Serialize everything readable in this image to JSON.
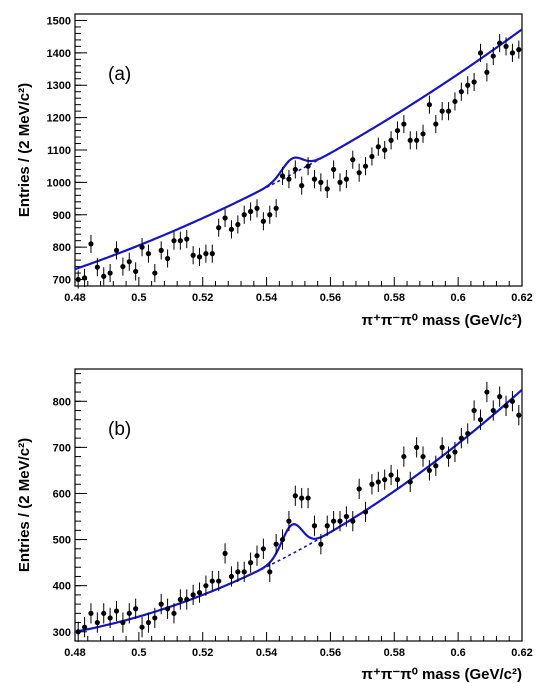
{
  "figure": {
    "ylabel": "Entries / (2 MeV/c²)",
    "xlabel": "π⁺π⁻π⁰ mass (GeV/c²)"
  },
  "chart_data": [
    {
      "type": "scatter",
      "panel_label": "(a)",
      "xlabel": "π⁺π⁻π⁰ mass (GeV/c²)",
      "ylabel": "Entries / (2 MeV/c²)",
      "xlim": [
        0.48,
        0.62
      ],
      "ylim": [
        680,
        1520
      ],
      "xticks": [
        0.48,
        0.5,
        0.52,
        0.54,
        0.56,
        0.58,
        0.6,
        0.62
      ],
      "yticks": [
        700,
        800,
        900,
        1000,
        1100,
        1200,
        1300,
        1400,
        1500
      ],
      "x": [
        0.481,
        0.483,
        0.485,
        0.487,
        0.489,
        0.491,
        0.493,
        0.495,
        0.497,
        0.499,
        0.501,
        0.503,
        0.505,
        0.507,
        0.509,
        0.511,
        0.513,
        0.515,
        0.517,
        0.519,
        0.521,
        0.523,
        0.525,
        0.527,
        0.529,
        0.531,
        0.533,
        0.535,
        0.537,
        0.539,
        0.541,
        0.543,
        0.545,
        0.547,
        0.549,
        0.551,
        0.553,
        0.555,
        0.557,
        0.559,
        0.561,
        0.563,
        0.565,
        0.567,
        0.569,
        0.571,
        0.573,
        0.575,
        0.577,
        0.579,
        0.581,
        0.583,
        0.585,
        0.587,
        0.589,
        0.591,
        0.593,
        0.595,
        0.597,
        0.599,
        0.601,
        0.603,
        0.605,
        0.607,
        0.609,
        0.611,
        0.613,
        0.615,
        0.617,
        0.619
      ],
      "y": [
        700,
        705,
        810,
        738,
        710,
        720,
        790,
        740,
        755,
        725,
        800,
        780,
        720,
        790,
        765,
        820,
        820,
        825,
        775,
        770,
        780,
        780,
        860,
        890,
        855,
        870,
        900,
        910,
        920,
        880,
        900,
        920,
        1020,
        1010,
        1040,
        990,
        1050,
        1010,
        1000,
        980,
        1040,
        1000,
        1010,
        1070,
        1030,
        1050,
        1080,
        1110,
        1100,
        1130,
        1160,
        1180,
        1130,
        1130,
        1150,
        1240,
        1180,
        1220,
        1220,
        1250,
        1280,
        1300,
        1310,
        1400,
        1340,
        1390,
        1430,
        1420,
        1400,
        1410
      ],
      "yerr": 28,
      "fit": {
        "background": {
          "a": 732,
          "b": 3400,
          "c": 13500,
          "x0": 0.48
        },
        "peak": {
          "mass": 0.548,
          "amplitude": 48,
          "sigma": 0.0032
        },
        "color": "#1515c8"
      }
    },
    {
      "type": "scatter",
      "panel_label": "(b)",
      "xlabel": "π⁺π⁻π⁰ mass (GeV/c²)",
      "ylabel": "Entries / (2 MeV/c²)",
      "xlim": [
        0.48,
        0.62
      ],
      "ylim": [
        280,
        870
      ],
      "xticks": [
        0.48,
        0.5,
        0.52,
        0.54,
        0.56,
        0.58,
        0.6,
        0.62
      ],
      "yticks": [
        300,
        400,
        500,
        600,
        700,
        800
      ],
      "x": [
        0.481,
        0.483,
        0.485,
        0.487,
        0.489,
        0.491,
        0.493,
        0.495,
        0.497,
        0.499,
        0.501,
        0.503,
        0.505,
        0.507,
        0.509,
        0.511,
        0.513,
        0.515,
        0.517,
        0.519,
        0.521,
        0.523,
        0.525,
        0.527,
        0.529,
        0.531,
        0.533,
        0.535,
        0.537,
        0.539,
        0.541,
        0.543,
        0.545,
        0.547,
        0.549,
        0.551,
        0.553,
        0.555,
        0.557,
        0.559,
        0.561,
        0.563,
        0.565,
        0.567,
        0.569,
        0.571,
        0.573,
        0.575,
        0.577,
        0.579,
        0.581,
        0.583,
        0.585,
        0.587,
        0.589,
        0.591,
        0.593,
        0.595,
        0.597,
        0.599,
        0.601,
        0.603,
        0.605,
        0.607,
        0.609,
        0.611,
        0.613,
        0.615,
        0.617,
        0.619
      ],
      "y": [
        300,
        310,
        340,
        320,
        340,
        330,
        345,
        320,
        340,
        350,
        310,
        320,
        330,
        360,
        350,
        340,
        370,
        370,
        380,
        385,
        400,
        410,
        410,
        470,
        420,
        430,
        430,
        450,
        465,
        480,
        430,
        490,
        500,
        540,
        595,
        590,
        590,
        530,
        490,
        530,
        540,
        540,
        550,
        540,
        610,
        560,
        620,
        625,
        630,
        640,
        630,
        680,
        625,
        700,
        680,
        650,
        660,
        700,
        680,
        690,
        720,
        730,
        780,
        760,
        820,
        780,
        810,
        790,
        800,
        770
      ],
      "yerr": 22,
      "fit": {
        "background": {
          "a": 300,
          "b": 1300,
          "c": 17500,
          "x0": 0.48
        },
        "peak": {
          "mass": 0.548,
          "amplitude": 63,
          "sigma": 0.0032
        },
        "color": "#1515c8"
      }
    }
  ]
}
